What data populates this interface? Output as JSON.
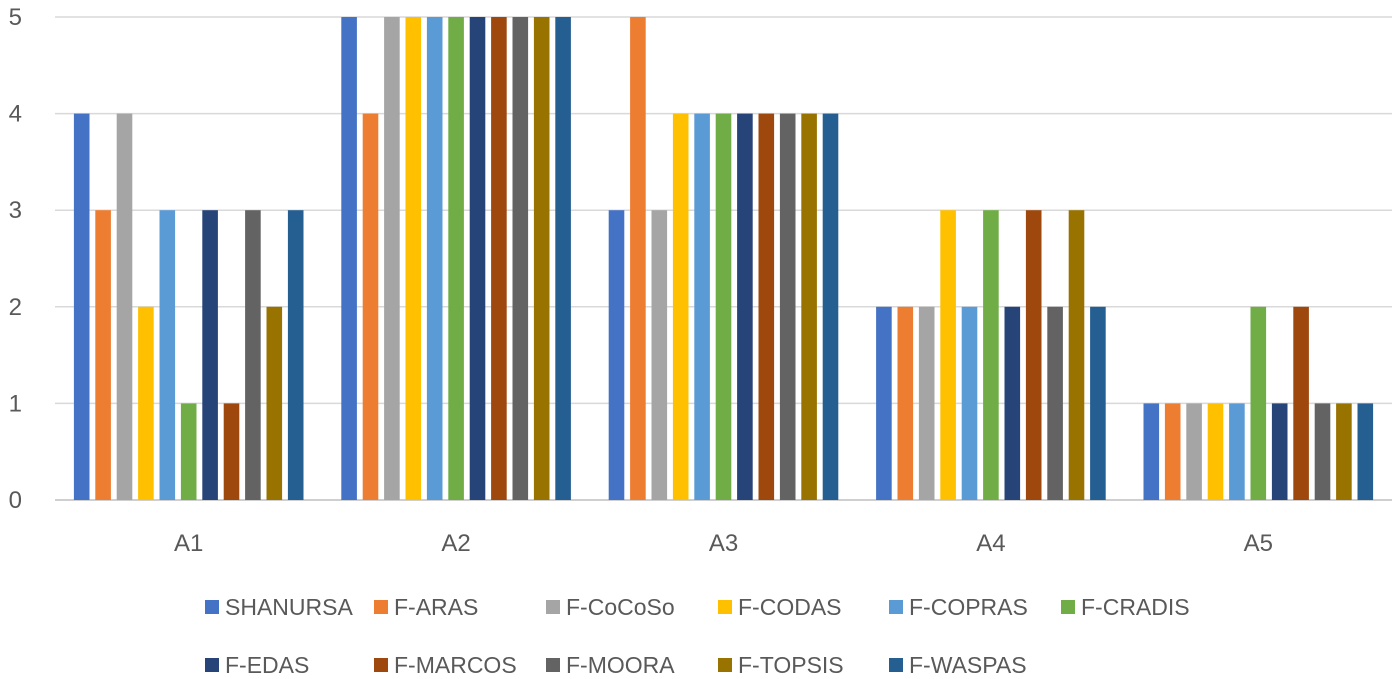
{
  "chart_data": {
    "type": "bar",
    "title": "",
    "xlabel": "",
    "ylabel": "",
    "ylim": [
      0,
      5
    ],
    "yticks": [
      "0",
      "1",
      "2",
      "3",
      "4",
      "5"
    ],
    "grid": true,
    "legend_position": "bottom",
    "categories": [
      "A1",
      "A2",
      "A3",
      "A4",
      "A5"
    ],
    "series": [
      {
        "name": "SHANURSA",
        "color": "#4472C4",
        "values": [
          4,
          5,
          3,
          2,
          1
        ]
      },
      {
        "name": "F-ARAS",
        "color": "#ED7D31",
        "values": [
          3,
          4,
          5,
          2,
          1
        ]
      },
      {
        "name": "F-CoCoSo",
        "color": "#A5A5A5",
        "values": [
          4,
          5,
          3,
          2,
          1
        ]
      },
      {
        "name": "F-CODAS",
        "color": "#FFC000",
        "values": [
          2,
          5,
          4,
          3,
          1
        ]
      },
      {
        "name": "F-COPRAS",
        "color": "#5B9BD5",
        "values": [
          3,
          5,
          4,
          2,
          1
        ]
      },
      {
        "name": "F-CRADIS",
        "color": "#70AD47",
        "values": [
          1,
          5,
          4,
          3,
          2
        ]
      },
      {
        "name": "F-EDAS",
        "color": "#264478",
        "values": [
          3,
          5,
          4,
          2,
          1
        ]
      },
      {
        "name": "F-MARCOS",
        "color": "#9E480E",
        "values": [
          1,
          5,
          4,
          3,
          2
        ]
      },
      {
        "name": "F-MOORA",
        "color": "#636363",
        "values": [
          3,
          5,
          4,
          2,
          1
        ]
      },
      {
        "name": "F-TOPSIS",
        "color": "#997300",
        "values": [
          2,
          5,
          4,
          3,
          1
        ]
      },
      {
        "name": "F-WASPAS",
        "color": "#255E91",
        "values": [
          3,
          5,
          4,
          2,
          1
        ]
      }
    ]
  }
}
